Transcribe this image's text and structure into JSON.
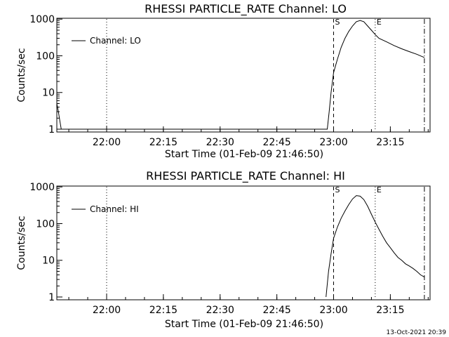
{
  "chart_data": [
    {
      "type": "line",
      "title": "RHESSI PARTICLE_RATE Channel: LO",
      "xlabel": "Start Time (01-Feb-09 21:46:50)",
      "ylabel": "Counts/sec",
      "yscale": "log",
      "ylim": [
        1,
        1000
      ],
      "xlim": [
        "21:46:50",
        "23:25:30"
      ],
      "x_ticks": [
        "22:00",
        "22:15",
        "22:30",
        "22:45",
        "23:00",
        "23:15"
      ],
      "y_ticks": [
        "1",
        "10",
        "100",
        "1000"
      ],
      "legend": {
        "placement": "top-left",
        "label": "Channel: LO"
      },
      "markers": [
        {
          "time": "22:00",
          "style": "dotted",
          "label": ""
        },
        {
          "time": "23:00",
          "style": "dashed",
          "label": "S"
        },
        {
          "time": "23:11",
          "style": "dotted",
          "label": "E"
        },
        {
          "time": "23:24",
          "style": "dash-dot",
          "label": ""
        }
      ],
      "series": [
        {
          "name": "Channel: LO",
          "x": [
            "21:46:50",
            "21:47:15",
            "21:47:40",
            "21:48:00",
            "22:58:20",
            "22:58:50",
            "22:59:20",
            "23:00:00",
            "23:01:00",
            "23:02:00",
            "23:03:00",
            "23:04:00",
            "23:05:00",
            "23:06:00",
            "23:07:00",
            "23:08:00",
            "23:09:00",
            "23:10:00",
            "23:11:00",
            "23:12:00",
            "23:14:00",
            "23:16:00",
            "23:18:00",
            "23:20:00",
            "23:22:00",
            "23:24:00"
          ],
          "y": [
            5,
            3,
            1.6,
            1,
            1,
            3,
            10,
            35,
            80,
            170,
            300,
            460,
            650,
            850,
            920,
            850,
            650,
            500,
            380,
            300,
            240,
            190,
            155,
            130,
            110,
            90
          ]
        }
      ]
    },
    {
      "type": "line",
      "title": "RHESSI PARTICLE_RATE Channel: HI",
      "xlabel": "Start Time (01-Feb-09 21:46:50)",
      "ylabel": "Counts/sec",
      "yscale": "log",
      "ylim": [
        1,
        1000
      ],
      "xlim": [
        "21:46:50",
        "23:25:30"
      ],
      "x_ticks": [
        "22:00",
        "22:15",
        "22:30",
        "22:45",
        "23:00",
        "23:15"
      ],
      "y_ticks": [
        "1",
        "10",
        "100",
        "1000"
      ],
      "legend": {
        "placement": "top-left",
        "label": "Channel: HI"
      },
      "markers": [
        {
          "time": "22:00",
          "style": "dotted",
          "label": ""
        },
        {
          "time": "23:00",
          "style": "dashed",
          "label": "S"
        },
        {
          "time": "23:11",
          "style": "dotted",
          "label": "E"
        },
        {
          "time": "23:24",
          "style": "dash-dot",
          "label": ""
        }
      ],
      "series": [
        {
          "name": "Channel: HI",
          "x": [
            "22:58:00",
            "22:58:40",
            "22:59:20",
            "23:00:00",
            "23:01:00",
            "23:02:00",
            "23:03:00",
            "23:04:00",
            "23:05:00",
            "23:06:00",
            "23:07:00",
            "23:08:00",
            "23:09:00",
            "23:10:00",
            "23:11:00",
            "23:12:00",
            "23:13:00",
            "23:14:00",
            "23:15:00",
            "23:16:00",
            "23:17:00",
            "23:18:00",
            "23:19:00",
            "23:20:00",
            "23:21:00",
            "23:22:00",
            "23:23:00",
            "23:24:00"
          ],
          "y": [
            1,
            5,
            15,
            40,
            80,
            140,
            220,
            330,
            470,
            580,
            560,
            450,
            300,
            180,
            110,
            70,
            45,
            30,
            22,
            16,
            12,
            10,
            8,
            7,
            6,
            5,
            4,
            3.5
          ]
        }
      ]
    }
  ],
  "footer": {
    "timestamp": "13-Oct-2021 20:39"
  },
  "colors": {
    "line": "#000000",
    "background": "#ffffff"
  }
}
